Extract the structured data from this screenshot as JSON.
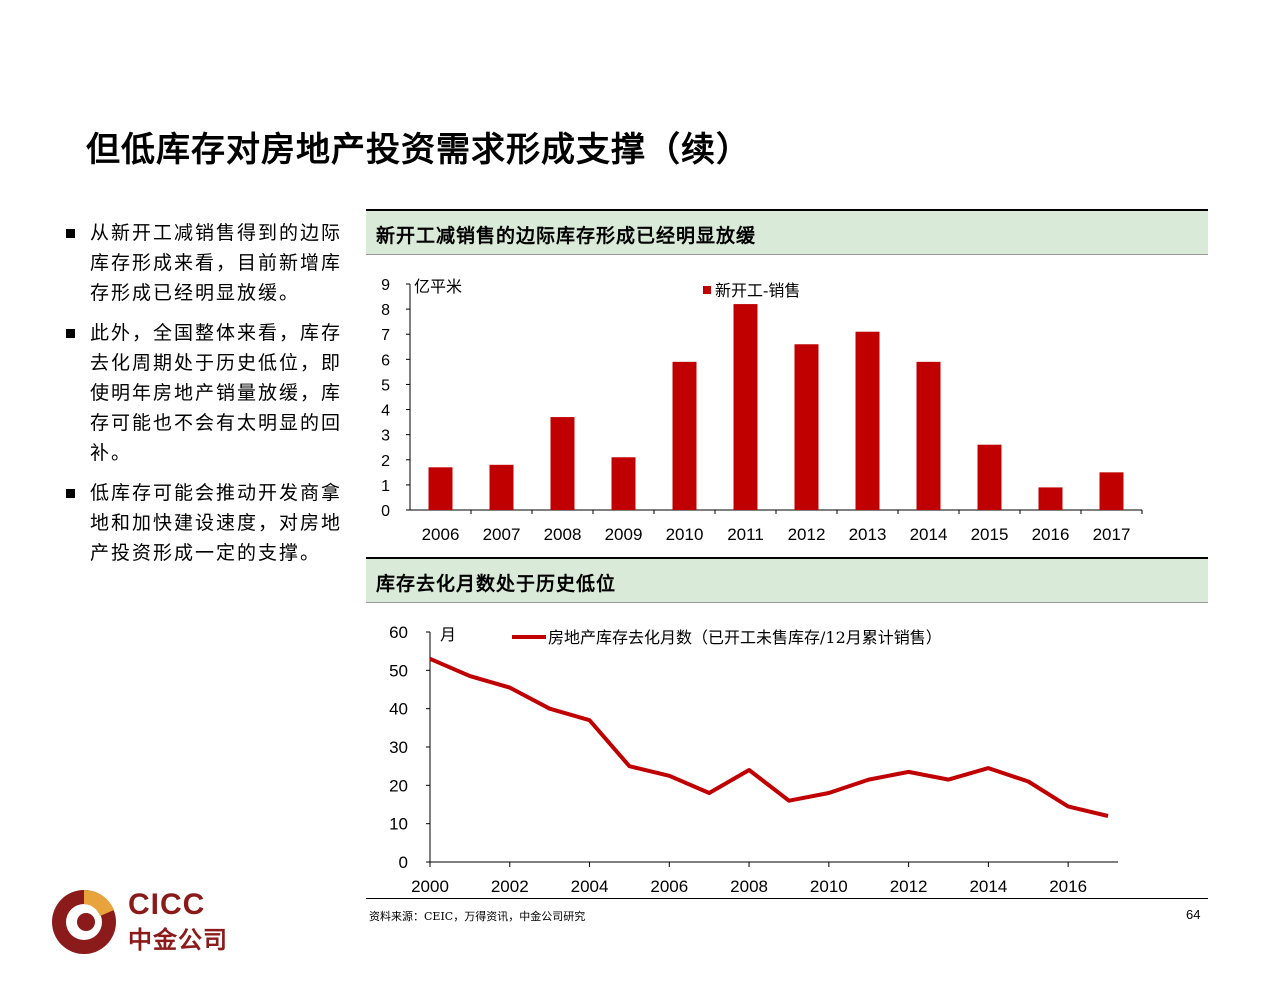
{
  "title": "但低库存对房地产投资需求形成支撑（续）",
  "bullets": [
    "从新开工减销售得到的边际库存形成来看，目前新增库存形成已经明显放缓。",
    "此外，全国整体来看，库存去化周期处于历史低位，即使明年房地产销量放缓，库存可能也不会有太明显的回补。",
    "低库存可能会推动开发商拿地和加快建设速度，对房地产投资形成一定的支撑。"
  ],
  "panel1": {
    "heading": "新开工减销售的边际库存形成已经明显放缓"
  },
  "panel2": {
    "heading": "库存去化月数处于历史低位"
  },
  "source": "资料来源：CEIC，万得资讯，中金公司研究",
  "page_number": "64",
  "logo": {
    "en": "CICC",
    "cn": "中金公司"
  },
  "colors": {
    "series": "#c00000",
    "header_bg": "#d9ead8",
    "logo": "#8b1a1a"
  },
  "chart_data": [
    {
      "type": "bar",
      "unit_label": "亿平米",
      "categories": [
        "2006",
        "2007",
        "2008",
        "2009",
        "2010",
        "2011",
        "2012",
        "2013",
        "2014",
        "2015",
        "2016",
        "2017"
      ],
      "series": [
        {
          "name": "新开工-销售",
          "values": [
            1.7,
            1.8,
            3.7,
            2.1,
            5.9,
            8.2,
            6.6,
            7.1,
            5.9,
            2.6,
            0.9,
            1.5
          ]
        }
      ],
      "ylim": [
        0,
        9
      ],
      "yticks": [
        0,
        1,
        2,
        3,
        4,
        5,
        6,
        7,
        8,
        9
      ],
      "legend": "top-center"
    },
    {
      "type": "line",
      "unit_label": "月",
      "x": [
        2000,
        2001,
        2002,
        2003,
        2004,
        2005,
        2006,
        2007,
        2008,
        2009,
        2010,
        2011,
        2012,
        2013,
        2014,
        2015,
        2016,
        2017
      ],
      "series": [
        {
          "name": "房地产库存去化月数（已开工未售库存/12月累计销售）",
          "values": [
            53,
            48.5,
            45.5,
            40,
            37,
            25,
            22.5,
            18,
            24,
            16,
            18,
            21.5,
            23.5,
            21.5,
            24.5,
            21,
            14.5,
            12
          ]
        }
      ],
      "xticks": [
        2000,
        2002,
        2004,
        2006,
        2008,
        2010,
        2012,
        2014,
        2016
      ],
      "ylim": [
        0,
        60
      ],
      "yticks": [
        0,
        10,
        20,
        30,
        40,
        50,
        60
      ],
      "legend": "top-center"
    }
  ]
}
